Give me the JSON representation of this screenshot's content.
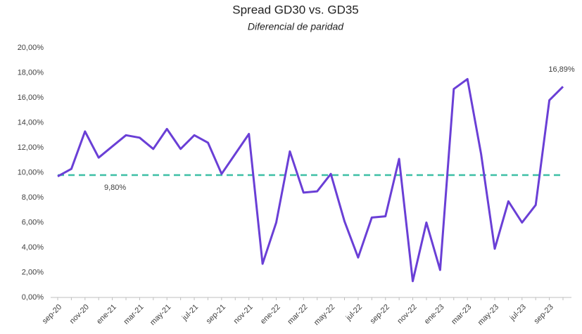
{
  "chart_data": {
    "type": "line",
    "title": "Spread GD30 vs. GD35",
    "subtitle": "Diferencial de paridad",
    "categories": [
      "sep-20",
      null,
      "nov-20",
      null,
      "ene-21",
      null,
      "mar-21",
      null,
      "may-21",
      null,
      "jul-21",
      null,
      "sep-21",
      null,
      "nov-21",
      null,
      "ene-22",
      null,
      "mar-22",
      null,
      "may-22",
      null,
      "jul-22",
      null,
      "sep-22",
      null,
      "nov-22",
      null,
      "ene-23",
      null,
      "mar-23",
      null,
      "may-23",
      null,
      "jul-23",
      null,
      "sep-23",
      null
    ],
    "series": [
      {
        "name": "Spread GD30 vs. GD35",
        "color": "#6a3fd6",
        "values": [
          9.7,
          10.3,
          13.3,
          11.2,
          12.1,
          13.0,
          12.8,
          11.9,
          13.5,
          11.9,
          13.0,
          12.4,
          9.9,
          11.5,
          13.1,
          2.7,
          6.0,
          11.7,
          8.4,
          8.5,
          9.9,
          6.1,
          3.2,
          6.4,
          6.5,
          11.1,
          1.3,
          6.0,
          2.2,
          16.7,
          17.5,
          11.5,
          3.9,
          7.7,
          6.0,
          7.4,
          15.8,
          16.89
        ],
        "value_labels": [
          null,
          null,
          null,
          null,
          null,
          null,
          null,
          null,
          null,
          null,
          null,
          null,
          null,
          null,
          null,
          null,
          null,
          null,
          null,
          null,
          null,
          null,
          null,
          null,
          null,
          null,
          null,
          null,
          null,
          null,
          null,
          null,
          null,
          null,
          null,
          null,
          null,
          "16,89%"
        ]
      }
    ],
    "reference_line": {
      "value": 9.8,
      "label": "9,80%",
      "color": "#3dbfa6"
    },
    "ylim": [
      0,
      20
    ],
    "yticks": [
      {
        "value": 0,
        "label": "0,00%"
      },
      {
        "value": 2,
        "label": "2,00%"
      },
      {
        "value": 4,
        "label": "4,00%"
      },
      {
        "value": 6,
        "label": "6,00%"
      },
      {
        "value": 8,
        "label": "8,00%"
      },
      {
        "value": 10,
        "label": "10,00%"
      },
      {
        "value": 12,
        "label": "12,00%"
      },
      {
        "value": 14,
        "label": "14,00%"
      },
      {
        "value": 16,
        "label": "16,00%"
      },
      {
        "value": 18,
        "label": "18,00%"
      },
      {
        "value": 20,
        "label": "20,00%"
      }
    ],
    "grid": false
  }
}
